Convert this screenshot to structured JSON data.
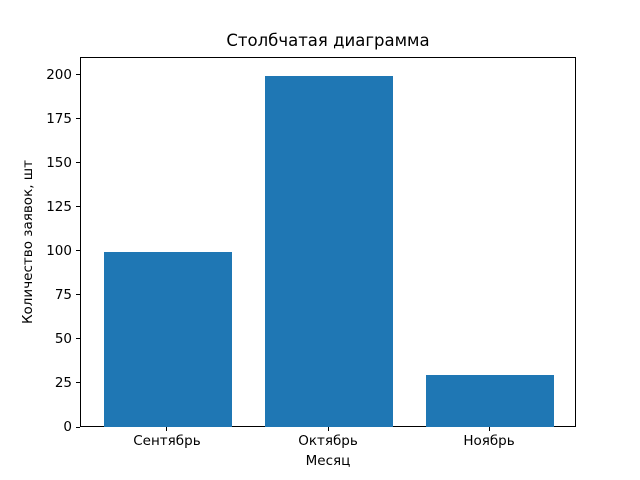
{
  "chart_data": {
    "type": "bar",
    "title": "Столбчатая диаграмма",
    "xlabel": "Месяц",
    "ylabel": "Количество заявок, шт",
    "categories": [
      "Сентябрь",
      "Октябрь",
      "Ноябрь"
    ],
    "values": [
      100,
      200,
      30
    ],
    "yticks": [
      0,
      25,
      50,
      75,
      100,
      125,
      150,
      175,
      200
    ],
    "ylim": [
      0,
      210
    ],
    "xlim": [
      -0.54,
      2.54
    ],
    "bar_width": 0.8,
    "bar_color": "#1f77b4",
    "axis_color": "#000000",
    "background_color": "#ffffff",
    "grid": false,
    "legend": "none"
  }
}
